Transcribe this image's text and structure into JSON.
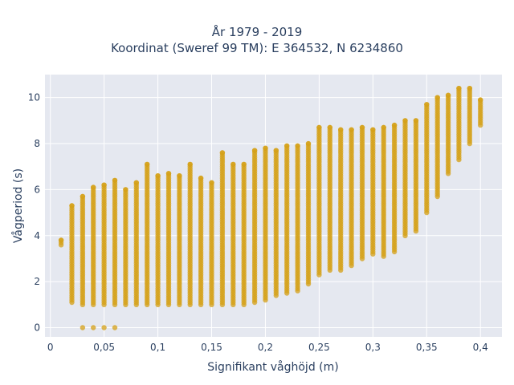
{
  "chart_data": {
    "type": "scatter",
    "title_lines": [
      "År 1979 - 2019",
      "Koordinat (Sweref 99 TM): E 364532, N 6234860"
    ],
    "xlabel": "Signifikant våghöjd (m)",
    "ylabel": "Vågperiod (s)",
    "xlim": [
      -0.005,
      0.42
    ],
    "ylim": [
      -0.4,
      11.0
    ],
    "x_ticks": [
      0,
      0.05,
      0.1,
      0.15,
      0.2,
      0.25,
      0.3,
      0.35,
      0.4
    ],
    "x_tick_labels": [
      "0",
      "0,05",
      "0,1",
      "0,15",
      "0,2",
      "0,25",
      "0,3",
      "0,35",
      "0,4"
    ],
    "y_ticks": [
      0,
      2,
      4,
      6,
      8,
      10
    ],
    "y_tick_labels": [
      "0",
      "2",
      "4",
      "6",
      "8",
      "10"
    ],
    "grid": true,
    "legend": "none",
    "marker_color": "#d4a017",
    "plot_bg": "#e5e8f0",
    "series": [
      {
        "columns": [
          {
            "x": 0.01,
            "ymin": 3.6,
            "ymax": 3.8
          },
          {
            "x": 0.02,
            "ymin": 1.1,
            "ymax": 5.3
          },
          {
            "x": 0.03,
            "ymin": 1.0,
            "ymax": 5.7
          },
          {
            "x": 0.04,
            "ymin": 1.0,
            "ymax": 6.1
          },
          {
            "x": 0.05,
            "ymin": 1.0,
            "ymax": 6.2
          },
          {
            "x": 0.06,
            "ymin": 1.0,
            "ymax": 6.4
          },
          {
            "x": 0.07,
            "ymin": 1.0,
            "ymax": 6.0
          },
          {
            "x": 0.08,
            "ymin": 1.0,
            "ymax": 6.3
          },
          {
            "x": 0.09,
            "ymin": 1.0,
            "ymax": 7.1
          },
          {
            "x": 0.1,
            "ymin": 1.0,
            "ymax": 6.6
          },
          {
            "x": 0.11,
            "ymin": 1.0,
            "ymax": 6.7
          },
          {
            "x": 0.12,
            "ymin": 1.0,
            "ymax": 6.6
          },
          {
            "x": 0.13,
            "ymin": 1.0,
            "ymax": 7.1
          },
          {
            "x": 0.14,
            "ymin": 1.0,
            "ymax": 6.5
          },
          {
            "x": 0.15,
            "ymin": 1.0,
            "ymax": 6.3
          },
          {
            "x": 0.16,
            "ymin": 1.0,
            "ymax": 7.6
          },
          {
            "x": 0.17,
            "ymin": 1.0,
            "ymax": 7.1
          },
          {
            "x": 0.18,
            "ymin": 1.0,
            "ymax": 7.1
          },
          {
            "x": 0.19,
            "ymin": 1.1,
            "ymax": 7.7
          },
          {
            "x": 0.2,
            "ymin": 1.2,
            "ymax": 7.8
          },
          {
            "x": 0.21,
            "ymin": 1.4,
            "ymax": 7.7
          },
          {
            "x": 0.22,
            "ymin": 1.5,
            "ymax": 7.9
          },
          {
            "x": 0.23,
            "ymin": 1.6,
            "ymax": 7.9
          },
          {
            "x": 0.24,
            "ymin": 1.9,
            "ymax": 8.0
          },
          {
            "x": 0.25,
            "ymin": 2.3,
            "ymax": 8.7
          },
          {
            "x": 0.26,
            "ymin": 2.5,
            "ymax": 8.7
          },
          {
            "x": 0.27,
            "ymin": 2.5,
            "ymax": 8.6
          },
          {
            "x": 0.28,
            "ymin": 2.7,
            "ymax": 8.6
          },
          {
            "x": 0.29,
            "ymin": 3.0,
            "ymax": 8.7
          },
          {
            "x": 0.3,
            "ymin": 3.2,
            "ymax": 8.6
          },
          {
            "x": 0.31,
            "ymin": 3.1,
            "ymax": 8.7
          },
          {
            "x": 0.32,
            "ymin": 3.3,
            "ymax": 8.8
          },
          {
            "x": 0.33,
            "ymin": 4.0,
            "ymax": 9.0
          },
          {
            "x": 0.34,
            "ymin": 4.2,
            "ymax": 9.0
          },
          {
            "x": 0.35,
            "ymin": 5.0,
            "ymax": 9.7
          },
          {
            "x": 0.36,
            "ymin": 5.7,
            "ymax": 10.0
          },
          {
            "x": 0.37,
            "ymin": 6.7,
            "ymax": 10.1
          },
          {
            "x": 0.38,
            "ymin": 7.3,
            "ymax": 10.4
          },
          {
            "x": 0.39,
            "ymin": 8.0,
            "ymax": 10.4
          },
          {
            "x": 0.4,
            "ymin": 8.8,
            "ymax": 9.9
          }
        ],
        "isolated_points": [
          [
            0.03,
            0
          ],
          [
            0.04,
            0
          ],
          [
            0.05,
            0
          ],
          [
            0.06,
            0
          ]
        ]
      }
    ]
  }
}
